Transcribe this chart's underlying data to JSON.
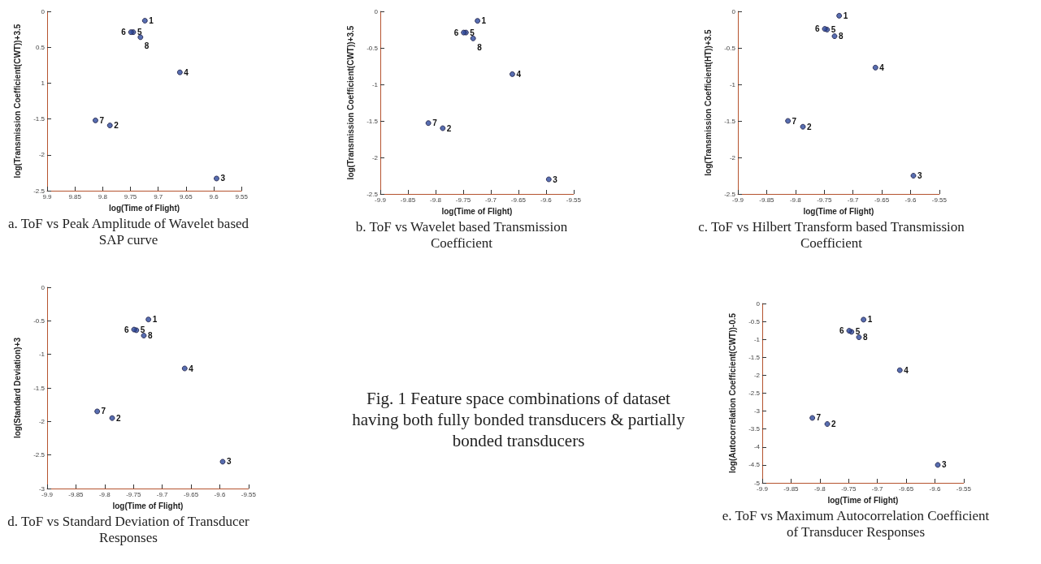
{
  "chart_data": [
    {
      "type": "scatter",
      "title": "a.   ToF vs Peak Amplitude of Wavelet based SAP curve",
      "xlabel": "log(Time of Flight)",
      "ylabel": "log(Transmission Coefficient(CWT))+3.5",
      "x": [
        -9.724,
        -9.787,
        -9.595,
        -9.661,
        -9.745,
        -9.749,
        -9.813,
        -9.732
      ],
      "series": [
        {
          "color": "#2e4a9e",
          "values": [
            -0.13,
            -1.59,
            -2.33,
            -0.85,
            -0.29,
            -0.29,
            -1.52,
            -0.36
          ]
        }
      ],
      "xlim": [
        -9.9,
        -9.55
      ],
      "ylim": [
        -2.5,
        0
      ],
      "xticks": [
        {
          "value": -9.9,
          "label": "9.9"
        },
        {
          "value": -9.85,
          "label": "9.85"
        },
        {
          "value": -9.8,
          "label": "9.8"
        },
        {
          "value": -9.75,
          "label": "9.75"
        },
        {
          "value": -9.7,
          "label": "9.7"
        },
        {
          "value": -9.65,
          "label": "9.65"
        },
        {
          "value": -9.6,
          "label": "9.6"
        },
        {
          "value": -9.55,
          "label": "9.55"
        }
      ],
      "yticks": [
        0,
        {
          "value": -0.5,
          "label": "0.5"
        },
        {
          "value": -1,
          "label": "1"
        },
        -1.5,
        -2,
        -2.5
      ],
      "annotations": [
        {
          "text": "1",
          "x": -9.724,
          "y": -0.13
        },
        {
          "text": "2",
          "x": -9.787,
          "y": -1.59
        },
        {
          "text": "3",
          "x": -9.595,
          "y": -2.33
        },
        {
          "text": "4",
          "x": -9.661,
          "y": -0.85
        },
        {
          "text": "5",
          "x": -9.745,
          "y": -0.29
        },
        {
          "text": "6",
          "x": -9.749,
          "y": -0.29
        },
        {
          "text": "7",
          "x": -9.813,
          "y": -1.52
        },
        {
          "text": "8",
          "x": -9.732,
          "y": -0.36
        }
      ],
      "grid": false,
      "marker": "circle"
    },
    {
      "type": "scatter",
      "title": "b.  ToF vs Wavelet based Transmission Coefficient",
      "xlabel": "log(Time of Flight)",
      "ylabel": "log(Transmission Coefficient(CWT))+3.5",
      "x": [
        -9.724,
        -9.787,
        -9.595,
        -9.661,
        -9.745,
        -9.749,
        -9.813,
        -9.732
      ],
      "series": [
        {
          "color": "#2e4a9e",
          "values": [
            -0.13,
            -1.6,
            -2.3,
            -0.86,
            -0.29,
            -0.29,
            -1.53,
            -0.37
          ]
        }
      ],
      "xlim": [
        -9.9,
        -9.55
      ],
      "ylim": [
        -2.5,
        0
      ],
      "xticks": [
        -9.9,
        -9.85,
        -9.8,
        -9.75,
        -9.7,
        -9.65,
        -9.6,
        -9.55
      ],
      "yticks": [
        0,
        -0.5,
        -1,
        -1.5,
        -2,
        -2.5
      ],
      "annotations": [
        {
          "text": "1",
          "x": -9.724,
          "y": -0.13
        },
        {
          "text": "2",
          "x": -9.787,
          "y": -1.6
        },
        {
          "text": "3",
          "x": -9.595,
          "y": -2.3
        },
        {
          "text": "4",
          "x": -9.661,
          "y": -0.86
        },
        {
          "text": "5",
          "x": -9.745,
          "y": -0.29
        },
        {
          "text": "6",
          "x": -9.749,
          "y": -0.29
        },
        {
          "text": "7",
          "x": -9.813,
          "y": -1.53
        },
        {
          "text": "8",
          "x": -9.732,
          "y": -0.37
        }
      ],
      "grid": false,
      "marker": "circle"
    },
    {
      "type": "scatter",
      "title": "c. ToF vs Hilbert Transform based Transmission Coefficient",
      "xlabel": "log(Time of Flight)",
      "ylabel": "log(Transmission Coefficient(HT))+3.5",
      "x": [
        -9.724,
        -9.787,
        -9.595,
        -9.661,
        -9.745,
        -9.749,
        -9.813,
        -9.732
      ],
      "series": [
        {
          "color": "#2e4a9e",
          "values": [
            -0.06,
            -1.58,
            -2.25,
            -0.77,
            -0.25,
            -0.24,
            -1.5,
            -0.34
          ]
        }
      ],
      "xlim": [
        -9.9,
        -9.55
      ],
      "ylim": [
        -2.5,
        0
      ],
      "xticks": [
        -9.9,
        -9.85,
        -9.8,
        -9.75,
        -9.7,
        -9.65,
        -9.6,
        -9.55
      ],
      "yticks": [
        0,
        -0.5,
        -1,
        -1.5,
        -2,
        -2.5
      ],
      "annotations": [
        {
          "text": "1",
          "x": -9.724,
          "y": -0.06
        },
        {
          "text": "2",
          "x": -9.787,
          "y": -1.58
        },
        {
          "text": "3",
          "x": -9.595,
          "y": -2.25
        },
        {
          "text": "4",
          "x": -9.661,
          "y": -0.77
        },
        {
          "text": "5",
          "x": -9.745,
          "y": -0.25
        },
        {
          "text": "6",
          "x": -9.749,
          "y": -0.24
        },
        {
          "text": "7",
          "x": -9.813,
          "y": -1.5
        },
        {
          "text": "8",
          "x": -9.732,
          "y": -0.34
        }
      ],
      "grid": false,
      "marker": "circle"
    },
    {
      "type": "scatter",
      "title": "d. ToF vs Standard Deviation of Transducer Responses",
      "xlabel": "log(Time of Flight)",
      "ylabel": "log(Standard Deviation)+3",
      "x": [
        -9.724,
        -9.787,
        -9.595,
        -9.661,
        -9.745,
        -9.749,
        -9.813,
        -9.732
      ],
      "series": [
        {
          "color": "#2e4a9e",
          "values": [
            -0.48,
            -1.95,
            -2.6,
            -1.21,
            -0.64,
            -0.63,
            -1.85,
            -0.72
          ]
        }
      ],
      "xlim": [
        -9.9,
        -9.55
      ],
      "ylim": [
        -3,
        0
      ],
      "xticks": [
        -9.9,
        -9.85,
        -9.8,
        -9.75,
        -9.7,
        -9.65,
        -9.6,
        -9.55
      ],
      "yticks": [
        0,
        -0.5,
        -1,
        -1.5,
        -2,
        -2.5,
        -3
      ],
      "annotations": [
        {
          "text": "1",
          "x": -9.724,
          "y": -0.48
        },
        {
          "text": "2",
          "x": -9.787,
          "y": -1.95
        },
        {
          "text": "3",
          "x": -9.595,
          "y": -2.6
        },
        {
          "text": "4",
          "x": -9.661,
          "y": -1.21
        },
        {
          "text": "5",
          "x": -9.745,
          "y": -0.64
        },
        {
          "text": "6",
          "x": -9.749,
          "y": -0.63
        },
        {
          "text": "7",
          "x": -9.813,
          "y": -1.85
        },
        {
          "text": "8",
          "x": -9.732,
          "y": -0.72
        }
      ],
      "grid": false,
      "marker": "circle"
    },
    {
      "type": "other",
      "annotations": [
        "Fig. 1 Feature space combinations of dataset having both fully bonded transducers & partially bonded transducers"
      ]
    },
    {
      "type": "scatter",
      "title": "e. ToF vs Maximum Autocorrelation Coefficient of Transducer Responses",
      "xlabel": "log(Time of Flight)",
      "ylabel": "log(Autocorrelation Coefficient(CWT))-0.5",
      "x": [
        -9.724,
        -9.787,
        -9.595,
        -9.661,
        -9.745,
        -9.749,
        -9.813,
        -9.732
      ],
      "series": [
        {
          "color": "#2e4a9e",
          "values": [
            -0.45,
            -3.36,
            -4.5,
            -1.86,
            -0.79,
            -0.76,
            -3.19,
            -0.94
          ]
        }
      ],
      "xlim": [
        -9.9,
        -9.55
      ],
      "ylim": [
        -5,
        0
      ],
      "xticks": [
        -9.9,
        -9.85,
        -9.8,
        -9.75,
        -9.7,
        -9.65,
        -9.6,
        -9.55
      ],
      "yticks": [
        0,
        -0.5,
        -1,
        -1.5,
        -2,
        -2.5,
        -3,
        -3.5,
        -4,
        -4.5,
        -5
      ],
      "annotations": [
        {
          "text": "1",
          "x": -9.724,
          "y": -0.45
        },
        {
          "text": "2",
          "x": -9.787,
          "y": -3.36
        },
        {
          "text": "3",
          "x": -9.595,
          "y": -4.5
        },
        {
          "text": "4",
          "x": -9.661,
          "y": -1.86
        },
        {
          "text": "5",
          "x": -9.745,
          "y": -0.79
        },
        {
          "text": "6",
          "x": -9.749,
          "y": -0.76
        },
        {
          "text": "7",
          "x": -9.813,
          "y": -3.19
        },
        {
          "text": "8",
          "x": -9.732,
          "y": -0.94
        }
      ],
      "grid": false,
      "marker": "circle"
    }
  ]
}
